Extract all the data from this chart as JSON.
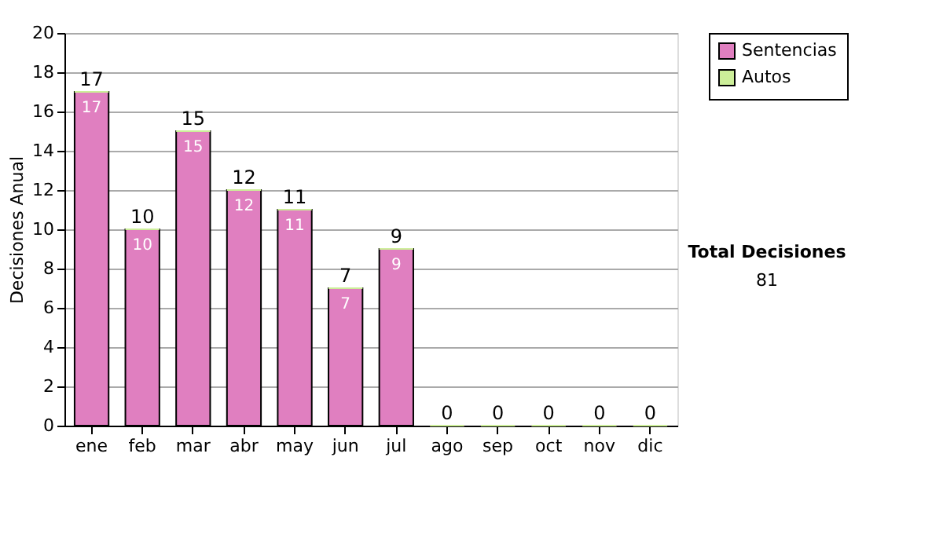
{
  "chart_data": {
    "type": "bar",
    "stacked": true,
    "ylabel": "Decisiones Anual",
    "categories": [
      "ene",
      "feb",
      "mar",
      "abr",
      "may",
      "jun",
      "jul",
      "ago",
      "sep",
      "oct",
      "nov",
      "dic"
    ],
    "series": [
      {
        "name": "Sentencias",
        "color": "#e07fc0",
        "values": [
          17,
          10,
          15,
          12,
          11,
          7,
          9,
          0,
          0,
          0,
          0,
          0
        ],
        "value_labels": [
          "17",
          "10",
          "15",
          "12",
          "11",
          "7",
          "9",
          null,
          null,
          null,
          null,
          null
        ]
      },
      {
        "name": "Autos",
        "color": "#ccee99",
        "values": [
          0,
          0,
          0,
          0,
          0,
          0,
          0,
          0,
          0,
          0,
          0,
          0
        ]
      }
    ],
    "totals": [
      "17",
      "10",
      "15",
      "12",
      "11",
      "7",
      "9",
      "0",
      "0",
      "0",
      "0",
      "0"
    ],
    "ylim": [
      0,
      20
    ],
    "yticks": [
      0,
      2,
      4,
      6,
      8,
      10,
      12,
      14,
      16,
      18,
      20
    ],
    "grid": "y",
    "legend": "right",
    "annotations": [
      "Total Decisiones",
      "81"
    ]
  }
}
